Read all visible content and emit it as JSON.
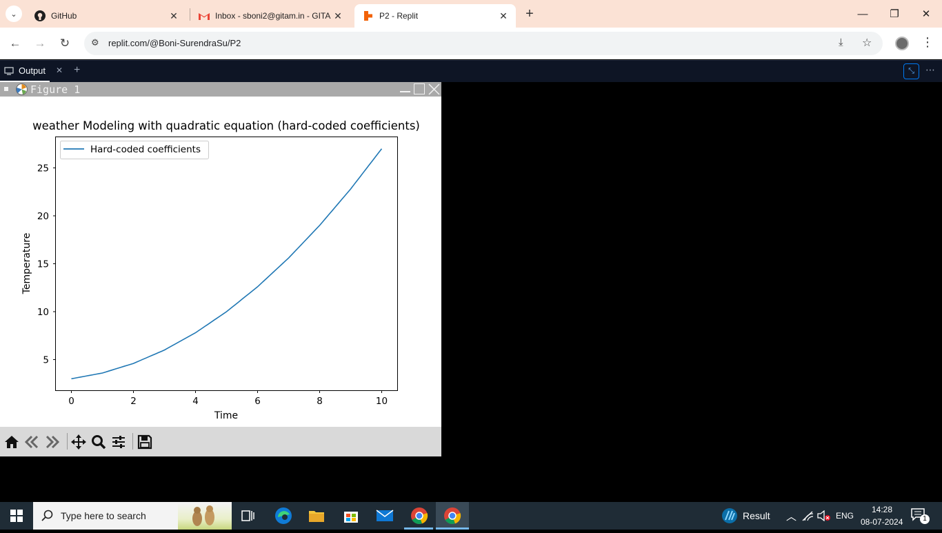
{
  "browser": {
    "tabs": [
      {
        "title": "GitHub",
        "icon": "github-icon"
      },
      {
        "title": "Inbox - sboni2@gitam.in - GITA",
        "icon": "gmail-icon"
      },
      {
        "title": "P2 - Replit",
        "icon": "replit-icon",
        "active": true
      }
    ],
    "url": "replit.com/@Boni-SurendraSu/P2"
  },
  "replit": {
    "tab_label": "Output"
  },
  "figure": {
    "window_title": "Figure 1",
    "toolbar_buttons": [
      "home-icon",
      "back-icon",
      "forward-icon",
      "pan-icon",
      "zoom-icon",
      "configure-subplots-icon",
      "save-icon"
    ]
  },
  "chart_data": {
    "type": "line",
    "title": "weather Modeling with quadratic equation (hard-coded coefficients)",
    "xlabel": "Time",
    "ylabel": "Temperature",
    "xlim": [
      -0.5,
      10.5
    ],
    "ylim": [
      1.8,
      28.2
    ],
    "xticks": [
      0,
      2,
      4,
      6,
      8,
      10
    ],
    "yticks": [
      5,
      10,
      15,
      20,
      25
    ],
    "legend_location": "upper left",
    "series": [
      {
        "name": "Hard-coded coefficients",
        "color": "#1f77b4",
        "x": [
          0,
          1,
          2,
          3,
          4,
          5,
          6,
          7,
          8,
          9,
          10
        ],
        "y": [
          3.0,
          3.6,
          4.6,
          6.0,
          7.8,
          10.0,
          12.6,
          15.6,
          19.0,
          22.8,
          27.0
        ]
      }
    ]
  },
  "taskbar": {
    "search_placeholder": "Type here to search",
    "weather_label": "Result",
    "language": "ENG",
    "time": "14:28",
    "date": "08-07-2024",
    "notification_count": "1"
  }
}
